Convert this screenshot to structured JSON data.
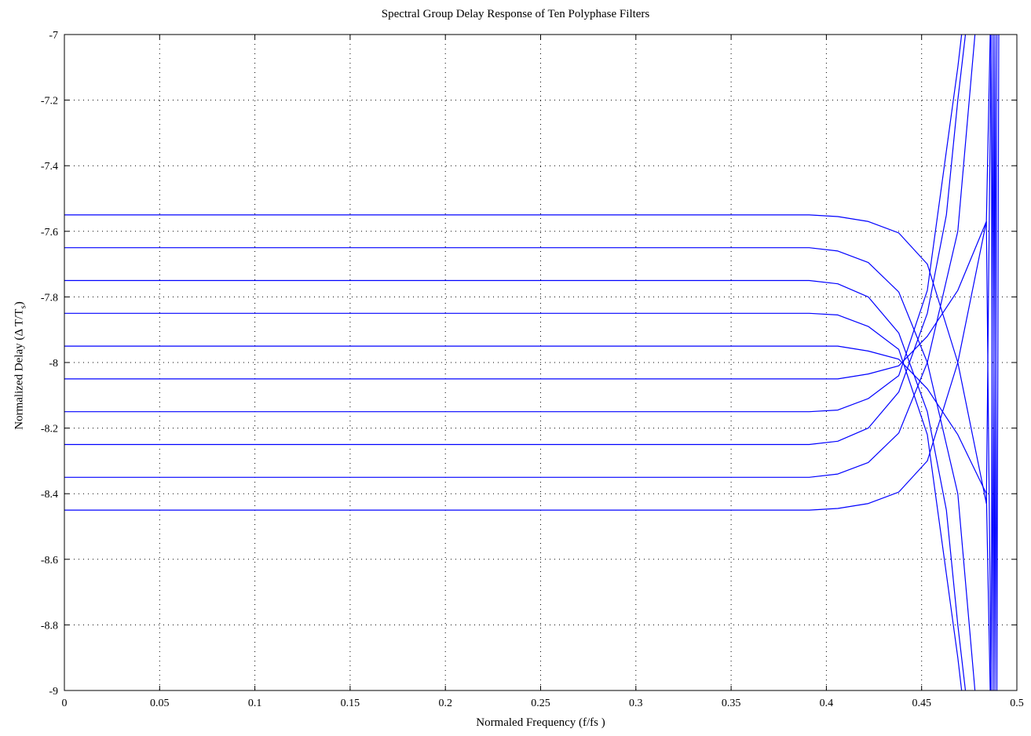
{
  "chart_data": {
    "type": "line",
    "title": "Spectral Group Delay Response of Ten Polyphase Filters",
    "xlabel": "Normaled Frequency (f/fs )",
    "ylabel": {
      "main": "Normalized Delay (Δ T/T",
      "sub": "s",
      "close": ")"
    },
    "xlim": [
      0,
      0.5
    ],
    "ylim": [
      -9,
      -7
    ],
    "xticks": [
      0,
      0.05,
      0.1,
      0.15,
      0.2,
      0.25,
      0.3,
      0.35,
      0.4,
      0.45,
      0.5
    ],
    "xtick_labels": [
      "0",
      "0.05",
      "0.1",
      "0.15",
      "0.2",
      "0.25",
      "0.3",
      "0.35",
      "0.4",
      "0.45",
      "0.5"
    ],
    "yticks": [
      -9,
      -8.8,
      -8.6,
      -8.4,
      -8.2,
      -8,
      -7.8,
      -7.6,
      -7.4,
      -7.2,
      -7
    ],
    "ytick_labels": [
      "-9",
      "-8.8",
      "-8.6",
      "-8.4",
      "-8.2",
      "-8",
      "-7.8",
      "-7.6",
      "-7.4",
      "-7.2",
      "-7"
    ],
    "grid": true,
    "grid_style": "dotted",
    "line_color": "#0000ff",
    "series": [
      {
        "x": [
          0,
          0.05,
          0.1,
          0.15,
          0.2,
          0.25,
          0.3,
          0.35,
          0.391,
          0.406,
          0.422,
          0.438,
          0.453,
          0.469,
          0.484
        ],
        "y": [
          -7.55,
          -7.55,
          -7.55,
          -7.55,
          -7.55,
          -7.55,
          -7.55,
          -7.55,
          -7.55,
          -7.555,
          -7.57,
          -7.605,
          -7.7,
          -8.0,
          -8.43
        ]
      },
      {
        "x": [
          0,
          0.05,
          0.1,
          0.15,
          0.2,
          0.25,
          0.3,
          0.35,
          0.391,
          0.406,
          0.422,
          0.438,
          0.453,
          0.469,
          0.478
        ],
        "y": [
          -7.65,
          -7.65,
          -7.65,
          -7.65,
          -7.65,
          -7.65,
          -7.65,
          -7.65,
          -7.65,
          -7.66,
          -7.695,
          -7.785,
          -8.0,
          -8.4,
          -9.0
        ]
      },
      {
        "x": [
          0,
          0.05,
          0.1,
          0.15,
          0.2,
          0.25,
          0.3,
          0.35,
          0.391,
          0.406,
          0.422,
          0.438,
          0.453,
          0.463,
          0.469,
          0.473
        ],
        "y": [
          -7.75,
          -7.75,
          -7.75,
          -7.75,
          -7.75,
          -7.75,
          -7.75,
          -7.75,
          -7.75,
          -7.76,
          -7.8,
          -7.91,
          -8.15,
          -8.45,
          -8.8,
          -9.0
        ]
      },
      {
        "x": [
          0,
          0.05,
          0.1,
          0.15,
          0.2,
          0.25,
          0.3,
          0.35,
          0.391,
          0.406,
          0.422,
          0.438,
          0.453,
          0.469,
          0.471
        ],
        "y": [
          -7.85,
          -7.85,
          -7.85,
          -7.85,
          -7.85,
          -7.85,
          -7.85,
          -7.85,
          -7.85,
          -7.855,
          -7.89,
          -7.96,
          -8.22,
          -8.9,
          -9.0
        ]
      },
      {
        "x": [
          0,
          0.05,
          0.1,
          0.15,
          0.2,
          0.25,
          0.3,
          0.35,
          0.391,
          0.406,
          0.422,
          0.438,
          0.453,
          0.469,
          0.484,
          0.486
        ],
        "y": [
          -7.95,
          -7.95,
          -7.95,
          -7.95,
          -7.95,
          -7.95,
          -7.95,
          -7.95,
          -7.95,
          -7.95,
          -7.965,
          -7.99,
          -8.08,
          -8.22,
          -8.4,
          -9.0
        ]
      },
      {
        "x": [
          0,
          0.05,
          0.1,
          0.15,
          0.2,
          0.25,
          0.3,
          0.35,
          0.391,
          0.406,
          0.422,
          0.438,
          0.453,
          0.469,
          0.484,
          0.486
        ],
        "y": [
          -8.05,
          -8.05,
          -8.05,
          -8.05,
          -8.05,
          -8.05,
          -8.05,
          -8.05,
          -8.05,
          -8.05,
          -8.035,
          -8.01,
          -7.92,
          -7.78,
          -7.57,
          -7.0
        ]
      },
      {
        "x": [
          0,
          0.05,
          0.1,
          0.15,
          0.2,
          0.25,
          0.3,
          0.35,
          0.391,
          0.406,
          0.422,
          0.438,
          0.453,
          0.469,
          0.471
        ],
        "y": [
          -8.15,
          -8.15,
          -8.15,
          -8.15,
          -8.15,
          -8.15,
          -8.15,
          -8.15,
          -8.15,
          -8.145,
          -8.11,
          -8.04,
          -7.78,
          -7.1,
          -7.0
        ]
      },
      {
        "x": [
          0,
          0.05,
          0.1,
          0.15,
          0.2,
          0.25,
          0.3,
          0.35,
          0.391,
          0.406,
          0.422,
          0.438,
          0.453,
          0.463,
          0.469,
          0.473
        ],
        "y": [
          -8.25,
          -8.25,
          -8.25,
          -8.25,
          -8.25,
          -8.25,
          -8.25,
          -8.25,
          -8.25,
          -8.24,
          -8.2,
          -8.09,
          -7.85,
          -7.55,
          -7.2,
          -7.0
        ]
      },
      {
        "x": [
          0,
          0.05,
          0.1,
          0.15,
          0.2,
          0.25,
          0.3,
          0.35,
          0.391,
          0.406,
          0.422,
          0.438,
          0.453,
          0.469,
          0.478
        ],
        "y": [
          -8.35,
          -8.35,
          -8.35,
          -8.35,
          -8.35,
          -8.35,
          -8.35,
          -8.35,
          -8.35,
          -8.34,
          -8.305,
          -8.215,
          -8.0,
          -7.6,
          -7.0
        ]
      },
      {
        "x": [
          0,
          0.05,
          0.1,
          0.15,
          0.2,
          0.25,
          0.3,
          0.35,
          0.391,
          0.406,
          0.422,
          0.438,
          0.453,
          0.469,
          0.484
        ],
        "y": [
          -8.45,
          -8.45,
          -8.45,
          -8.45,
          -8.45,
          -8.45,
          -8.45,
          -8.45,
          -8.45,
          -8.445,
          -8.43,
          -8.395,
          -8.3,
          -8.0,
          -7.57
        ]
      }
    ],
    "extra_segments": [
      {
        "x": [
          0.484,
          0.4865,
          0.4875,
          0.4885,
          0.4895,
          0.4905
        ],
        "y": [
          -8.43,
          -7.0,
          -9.0,
          -7.0,
          -9.0,
          -7.0
        ]
      },
      {
        "x": [
          0.484,
          0.4865,
          0.4875,
          0.4885,
          0.4895
        ],
        "y": [
          -7.57,
          -9.0,
          -7.0,
          -9.0,
          -7.0
        ]
      }
    ]
  }
}
